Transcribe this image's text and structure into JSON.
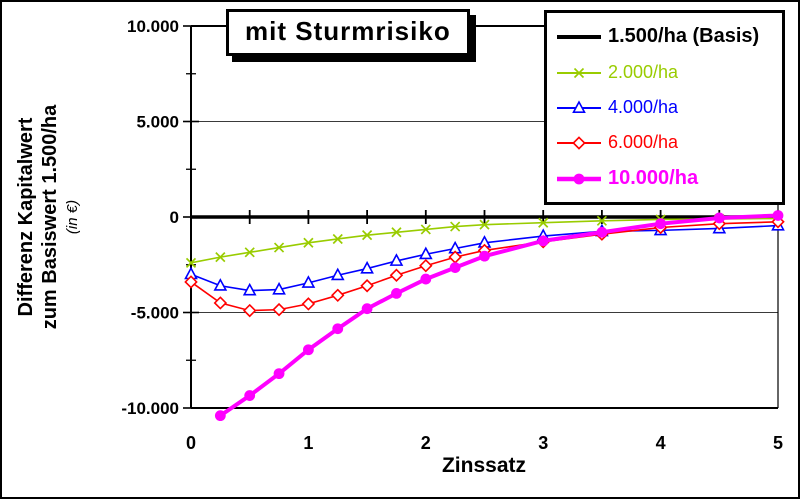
{
  "figure": {
    "title": "mit Sturmrisiko",
    "xlabel": "Zinssatz",
    "ylabel_line1": "Differenz Kapitalwert",
    "ylabel_line2": "zum Basiswert 1.500/ha",
    "ylabel_unit": "(in €)"
  },
  "chart_data": {
    "type": "line",
    "title": "mit Sturmrisiko",
    "xlabel": "Zinssatz",
    "ylabel": "Differenz Kapitalwert zum Basiswert 1.500/ha (in €)",
    "xlim": [
      0,
      5
    ],
    "ylim": [
      -10000,
      10000
    ],
    "grid": "horizontal major gridlines, black",
    "legend_position": "top-right",
    "x_axis": {
      "ticks": [
        {
          "value": 0,
          "label": "0"
        },
        {
          "value": 1,
          "label": "1"
        },
        {
          "value": 2,
          "label": "2"
        },
        {
          "value": 3,
          "label": "3"
        },
        {
          "value": 4,
          "label": "4"
        },
        {
          "value": 5,
          "label": "5"
        }
      ],
      "minor_tick_step": 0.5
    },
    "y_axis": {
      "ticks": [
        {
          "value": 10000,
          "label": "10.000"
        },
        {
          "value": 5000,
          "label": "5.000"
        },
        {
          "value": 0,
          "label": "0"
        },
        {
          "value": -5000,
          "label": "-5.000"
        },
        {
          "value": -10000,
          "label": "-10.000"
        }
      ],
      "minor_tick_step": 2500
    },
    "x": [
      0,
      0.25,
      0.5,
      0.75,
      1,
      1.25,
      1.5,
      1.75,
      2,
      2.25,
      2.5,
      3,
      3.5,
      4,
      4.5,
      5
    ],
    "series": [
      {
        "name": "1.500/ha (Basis)",
        "color": "#000000",
        "marker": "none",
        "line_width": 3.5,
        "legend_bold": true,
        "values": [
          0,
          0,
          0,
          0,
          0,
          0,
          0,
          0,
          0,
          0,
          0,
          0,
          0,
          0,
          0,
          0
        ]
      },
      {
        "name": "2.000/ha",
        "color": "#99CC00",
        "marker": "x",
        "line_width": 1.6,
        "legend_bold": false,
        "values": [
          -2400,
          -2100,
          -1850,
          -1600,
          -1350,
          -1150,
          -950,
          -800,
          -650,
          -500,
          -400,
          -300,
          -200,
          -130,
          -100,
          -80
        ]
      },
      {
        "name": "4.000/ha",
        "color": "#0000FF",
        "marker": "triangle",
        "line_width": 1.6,
        "legend_bold": false,
        "values": [
          -3000,
          -3600,
          -3850,
          -3800,
          -3450,
          -3050,
          -2700,
          -2300,
          -1950,
          -1650,
          -1350,
          -1000,
          -750,
          -700,
          -600,
          -450
        ]
      },
      {
        "name": "6.000/ha",
        "color": "#FF0000",
        "marker": "diamond",
        "line_width": 1.6,
        "legend_bold": false,
        "values": [
          -3400,
          -4500,
          -4900,
          -4850,
          -4550,
          -4100,
          -3600,
          -3050,
          -2550,
          -2100,
          -1750,
          -1300,
          -900,
          -550,
          -350,
          -250
        ]
      },
      {
        "name": "10.000/ha",
        "color": "#FF00FF",
        "marker": "dot",
        "line_width": 4,
        "legend_bold": true,
        "values": [
          null,
          -10400,
          -9350,
          -8200,
          -6950,
          -5850,
          -4800,
          -4000,
          -3250,
          -2650,
          -2050,
          -1250,
          -800,
          -350,
          -50,
          80
        ]
      }
    ]
  }
}
